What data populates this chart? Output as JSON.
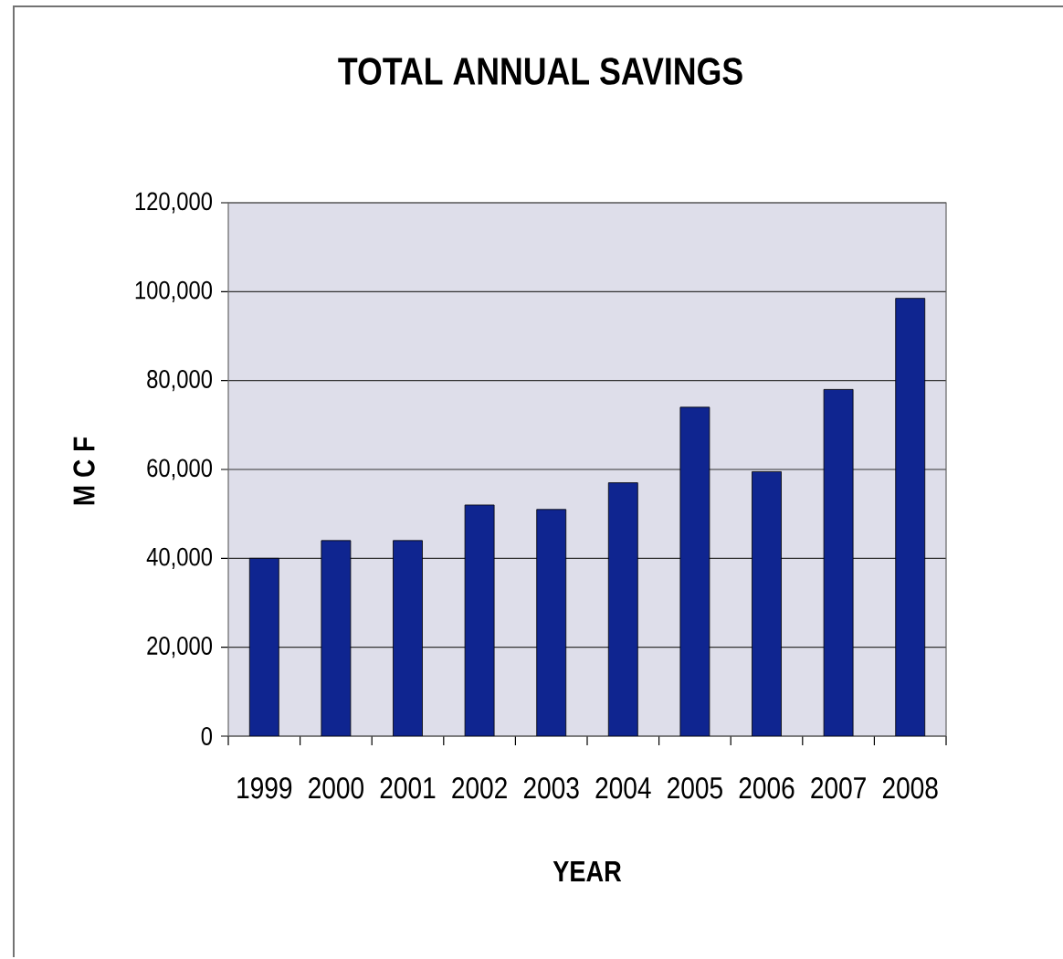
{
  "chart_data": {
    "type": "bar",
    "title": "TOTAL ANNUAL SAVINGS",
    "xlabel": "YEAR",
    "ylabel": "M C F",
    "categories": [
      "1999",
      "2000",
      "2001",
      "2002",
      "2003",
      "2004",
      "2005",
      "2006",
      "2007",
      "2008"
    ],
    "values": [
      40000,
      44000,
      44000,
      52000,
      51000,
      57000,
      74000,
      59500,
      78000,
      98500
    ],
    "color": "#0f2590",
    "ylim": [
      0,
      120000
    ],
    "yticks": [
      0,
      {
        "value": 20000,
        "label": "20,000"
      },
      {
        "value": 40000,
        "label": "40,000"
      },
      {
        "value": 60000,
        "label": "60,000"
      },
      {
        "value": 80000,
        "label": "80,000"
      },
      {
        "value": 100000,
        "label": "100,000"
      },
      {
        "value": 120000,
        "label": "120,000"
      }
    ],
    "grid": "y"
  }
}
